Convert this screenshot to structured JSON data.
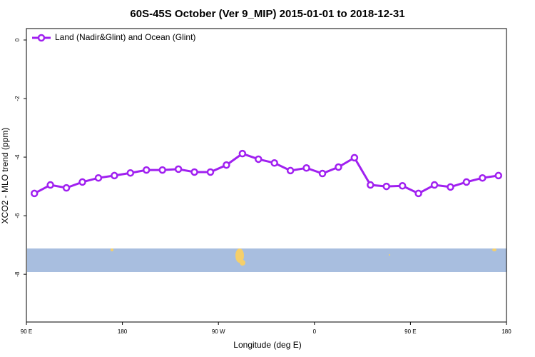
{
  "chart_data": {
    "type": "line",
    "title": "60S-45S October (Ver 9_MIP)   2015-01-01 to 2018-12-31",
    "x_label": "Longitude (deg E)",
    "y_label": "XCO2 - MLO trend (ppm)",
    "x": [
      97.5,
      112.5,
      127.5,
      142.5,
      157.5,
      172.5,
      187.5,
      202.5,
      217.5,
      232.5,
      247.5,
      262.5,
      277.5,
      292.5,
      307.5,
      322.5,
      337.5,
      352.5,
      367.5,
      382.5,
      397.5,
      412.5,
      427.5,
      442.5,
      457.5,
      472.5,
      487.5,
      502.5,
      517.5,
      532.5
    ],
    "series": [
      {
        "name": "Land (Nadir&Glint) and Ocean (Glint)",
        "color": "#a020f0",
        "values": [
          -5.24,
          -4.95,
          -5.05,
          -4.85,
          -4.71,
          -4.63,
          -4.54,
          -4.44,
          -4.44,
          -4.41,
          -4.51,
          -4.51,
          -4.27,
          -3.88,
          -4.07,
          -4.2,
          -4.46,
          -4.37,
          -4.56,
          -4.34,
          -4.02,
          -4.95,
          -5.0,
          -4.98,
          -5.24,
          -4.95,
          -5.02,
          -4.85,
          -4.71,
          -4.63
        ]
      }
    ],
    "xlim": [
      90,
      540
    ],
    "xticks": [
      {
        "value": 90,
        "label": "90 E"
      },
      180,
      {
        "value": 270,
        "label": "90 W"
      },
      {
        "value": 360,
        "label": "0"
      },
      {
        "value": 450,
        "label": "90 E"
      },
      {
        "value": 540,
        "label": "180"
      }
    ],
    "ylim": [
      -9.63,
      0.39
    ],
    "yticks": [
      0,
      -2,
      -4,
      -6,
      -8
    ],
    "legend": "top-left"
  }
}
